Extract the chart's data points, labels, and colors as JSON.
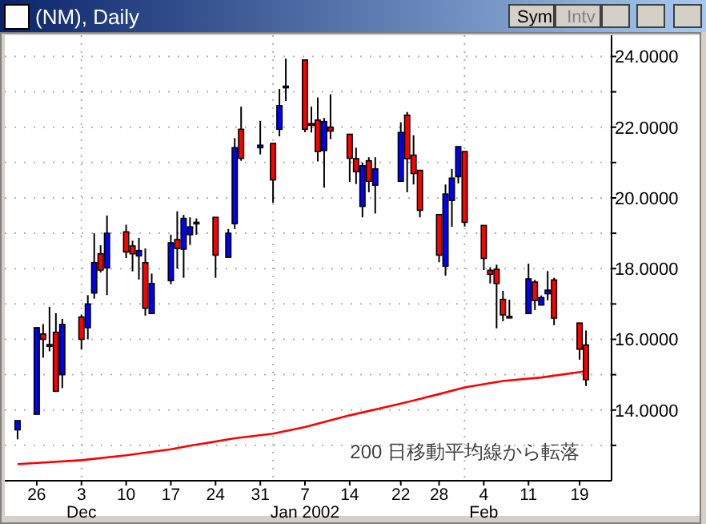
{
  "chart_data": {
    "type": "candlestick",
    "title": "(NM), Daily",
    "x": [
      "2001-11-23",
      "2001-11-26",
      "2001-11-27",
      "2001-11-28",
      "2001-11-29",
      "2001-11-30",
      "2001-12-03",
      "2001-12-04",
      "2001-12-05",
      "2001-12-06",
      "2001-12-07",
      "2001-12-10",
      "2001-12-11",
      "2001-12-12",
      "2001-12-13",
      "2001-12-14",
      "2001-12-17",
      "2001-12-18",
      "2001-12-19",
      "2001-12-20",
      "2001-12-21",
      "2001-12-24",
      "2001-12-26",
      "2001-12-27",
      "2001-12-28",
      "2001-12-31",
      "2002-01-02",
      "2002-01-03",
      "2002-01-04",
      "2002-01-07",
      "2002-01-08",
      "2002-01-09",
      "2002-01-10",
      "2002-01-11",
      "2002-01-14",
      "2002-01-15",
      "2002-01-16",
      "2002-01-17",
      "2002-01-18",
      "2002-01-22",
      "2002-01-23",
      "2002-01-24",
      "2002-01-25",
      "2002-01-28",
      "2002-01-29",
      "2002-01-30",
      "2002-01-31",
      "2002-02-01",
      "2002-02-04",
      "2002-02-05",
      "2002-02-06",
      "2002-02-07",
      "2002-02-08",
      "2002-02-11",
      "2002-02-12",
      "2002-02-13",
      "2002-02-14",
      "2002-02-15",
      "2002-02-19",
      "2002-02-20"
    ],
    "series": [
      {
        "ohlc": [
          [
            13.44,
            13.7,
            13.17,
            13.7
          ],
          [
            13.88,
            16.33,
            13.88,
            16.33
          ],
          [
            16.15,
            16.43,
            15.48,
            16.0
          ],
          [
            15.85,
            16.92,
            15.66,
            15.84
          ],
          [
            16.2,
            16.74,
            14.53,
            14.53
          ],
          [
            15.0,
            16.58,
            14.62,
            16.42
          ],
          [
            16.63,
            16.7,
            15.71,
            16.0
          ],
          [
            16.33,
            17.25,
            16.0,
            17.0
          ],
          [
            17.31,
            19.0,
            17.15,
            18.17
          ],
          [
            18.42,
            18.66,
            17.89,
            17.96
          ],
          [
            18.02,
            19.5,
            17.25,
            19.0
          ],
          [
            19.04,
            19.24,
            18.3,
            18.47
          ],
          [
            18.64,
            18.79,
            17.92,
            18.42
          ],
          [
            18.36,
            18.87,
            17.69,
            18.51
          ],
          [
            18.17,
            18.57,
            16.67,
            16.88
          ],
          [
            16.73,
            17.86,
            16.73,
            17.58
          ],
          [
            17.66,
            18.96,
            17.56,
            18.73
          ],
          [
            18.82,
            19.62,
            18.0,
            18.57
          ],
          [
            18.55,
            19.52,
            17.74,
            19.42
          ],
          [
            18.96,
            19.45,
            18.67,
            19.18
          ],
          [
            19.28,
            19.42,
            18.96,
            19.31
          ],
          [
            19.45,
            19.45,
            17.74,
            18.38
          ],
          [
            18.32,
            19.12,
            18.32,
            19.0
          ],
          [
            19.27,
            21.69,
            19.12,
            21.42
          ],
          [
            21.94,
            22.58,
            21.05,
            21.12
          ],
          [
            21.42,
            22.18,
            21.23,
            21.49
          ],
          [
            21.54,
            21.54,
            19.86,
            20.51
          ],
          [
            21.94,
            23.08,
            21.74,
            22.61
          ],
          [
            23.14,
            23.94,
            22.74,
            23.16
          ],
          [
            23.9,
            23.9,
            21.86,
            21.94
          ],
          [
            22.1,
            22.58,
            21.85,
            22.08
          ],
          [
            22.2,
            22.84,
            21.03,
            21.31
          ],
          [
            21.34,
            22.26,
            20.29,
            22.16
          ],
          [
            22.0,
            22.93,
            21.66,
            21.89
          ],
          [
            21.8,
            21.8,
            20.45,
            21.12
          ],
          [
            21.11,
            21.42,
            20.39,
            20.74
          ],
          [
            19.76,
            21.0,
            19.45,
            20.91
          ],
          [
            21.05,
            21.15,
            20.16,
            20.47
          ],
          [
            20.36,
            21.15,
            19.56,
            20.82
          ],
          [
            20.47,
            22.14,
            20.47,
            21.85
          ],
          [
            22.34,
            22.43,
            20.16,
            21.11
          ],
          [
            21.21,
            21.77,
            20.38,
            20.69
          ],
          [
            20.78,
            20.78,
            19.45,
            19.65
          ],
          [
            19.53,
            19.53,
            18.18,
            18.38
          ],
          [
            18.07,
            20.38,
            17.8,
            20.11
          ],
          [
            19.93,
            20.82,
            19.18,
            20.56
          ],
          [
            20.6,
            21.45,
            20.41,
            21.45
          ],
          [
            21.31,
            21.31,
            19.19,
            19.31
          ],
          [
            19.22,
            19.22,
            17.96,
            18.29
          ],
          [
            17.95,
            18.04,
            17.58,
            17.84
          ],
          [
            17.98,
            18.11,
            16.31,
            17.58
          ],
          [
            17.13,
            17.37,
            16.51,
            16.69
          ],
          [
            16.65,
            17.12,
            16.62,
            16.64
          ],
          [
            16.73,
            18.14,
            16.73,
            17.71
          ],
          [
            17.62,
            17.68,
            16.83,
            17.1
          ],
          [
            16.97,
            17.24,
            16.97,
            17.18
          ],
          [
            17.29,
            17.93,
            17.1,
            17.39
          ],
          [
            17.68,
            17.74,
            16.4,
            16.6
          ],
          [
            16.46,
            16.46,
            15.42,
            15.72
          ],
          [
            15.84,
            16.25,
            14.68,
            14.86
          ]
        ],
        "colors": [
          "#0000ff",
          "#0000ff",
          "#ff0000",
          "#ff0000",
          "#ff0000",
          "#0000ff",
          "#ff0000",
          "#0000ff",
          "#0000ff",
          "#ff0000",
          "#0000ff",
          "#ff0000",
          "#ff0000",
          "#0000ff",
          "#ff0000",
          "#0000ff",
          "#0000ff",
          "#ff0000",
          "#0000ff",
          "#0000ff",
          "#0000ff",
          "#ff0000",
          "#0000ff",
          "#0000ff",
          "#ff0000",
          "#0000ff",
          "#ff0000",
          "#0000ff",
          "#0000ff",
          "#ff0000",
          "#ff0000",
          "#ff0000",
          "#0000ff",
          "#ff0000",
          "#ff0000",
          "#ff0000",
          "#0000ff",
          "#ff0000",
          "#0000ff",
          "#0000ff",
          "#ff0000",
          "#ff0000",
          "#ff0000",
          "#ff0000",
          "#0000ff",
          "#0000ff",
          "#0000ff",
          "#ff0000",
          "#ff0000",
          "#ff0000",
          "#ff0000",
          "#ff0000",
          "#ff0000",
          "#0000ff",
          "#ff0000",
          "#0000ff",
          "#0000ff",
          "#ff0000",
          "#ff0000",
          "#ff0000"
        ]
      },
      {
        "type": "line",
        "color": "#ff0000",
        "x": [
          "2001-11-23",
          "2001-12-03",
          "2001-12-10",
          "2001-12-17",
          "2001-12-20",
          "2001-12-27",
          "2002-01-02",
          "2002-01-07",
          "2002-01-14",
          "2002-01-22",
          "2002-01-28",
          "2002-02-01",
          "2002-02-07",
          "2002-02-13",
          "2002-02-20"
        ],
        "values": [
          12.47,
          12.58,
          12.72,
          12.89,
          12.99,
          13.2,
          13.33,
          13.52,
          13.85,
          14.18,
          14.45,
          14.64,
          14.82,
          14.92,
          15.1
        ]
      }
    ],
    "xlim": [
      "2001-11-21",
      "2002-02-24"
    ],
    "ylim": [
      12.0,
      24.6
    ],
    "yticks": [
      {
        "value": 13,
        "label": null
      },
      {
        "value": 14,
        "label": "14.0000"
      },
      {
        "value": 15,
        "label": null
      },
      {
        "value": 16,
        "label": "16.0000"
      },
      {
        "value": 17,
        "label": null
      },
      {
        "value": 18,
        "label": "18.0000"
      },
      {
        "value": 19,
        "label": null
      },
      {
        "value": 20,
        "label": "20.0000"
      },
      {
        "value": 21,
        "label": null
      },
      {
        "value": 22,
        "label": "22.0000"
      },
      {
        "value": 23,
        "label": null
      },
      {
        "value": 24,
        "label": "24.0000"
      }
    ],
    "xticks": [
      {
        "value": "2001-11-26",
        "label": "26"
      },
      {
        "value": "2001-12-03",
        "label": "3\nDec"
      },
      {
        "value": "2001-12-10",
        "label": "10"
      },
      {
        "value": "2001-12-17",
        "label": "17"
      },
      {
        "value": "2001-12-24",
        "label": "24"
      },
      {
        "value": "2001-12-31",
        "label": "31"
      },
      {
        "value": "2002-01-07",
        "label": "7\nJan 2002"
      },
      {
        "value": "2002-01-14",
        "label": "14"
      },
      {
        "value": "2002-01-22",
        "label": "22"
      },
      {
        "value": "2002-01-28",
        "label": "28"
      },
      {
        "value": "2002-02-04",
        "label": "4\nFeb"
      },
      {
        "value": "2002-02-11",
        "label": "11"
      },
      {
        "value": "2002-02-19",
        "label": "19"
      }
    ],
    "grid": "y",
    "ref_lines": [
      {
        "axis": "x",
        "value": "2001-12-03",
        "color": "#b4b4b4",
        "line_style": "dotted"
      },
      {
        "axis": "x",
        "value": "2002-01-02",
        "color": "#b4b4b4",
        "line_style": "dotted"
      },
      {
        "axis": "x",
        "value": "2002-02-01",
        "color": "#b4b4b4",
        "line_style": "dotted"
      }
    ],
    "annotations": [
      "200 日移動平均線から転落",
      "Sym",
      "Intv"
    ]
  }
}
